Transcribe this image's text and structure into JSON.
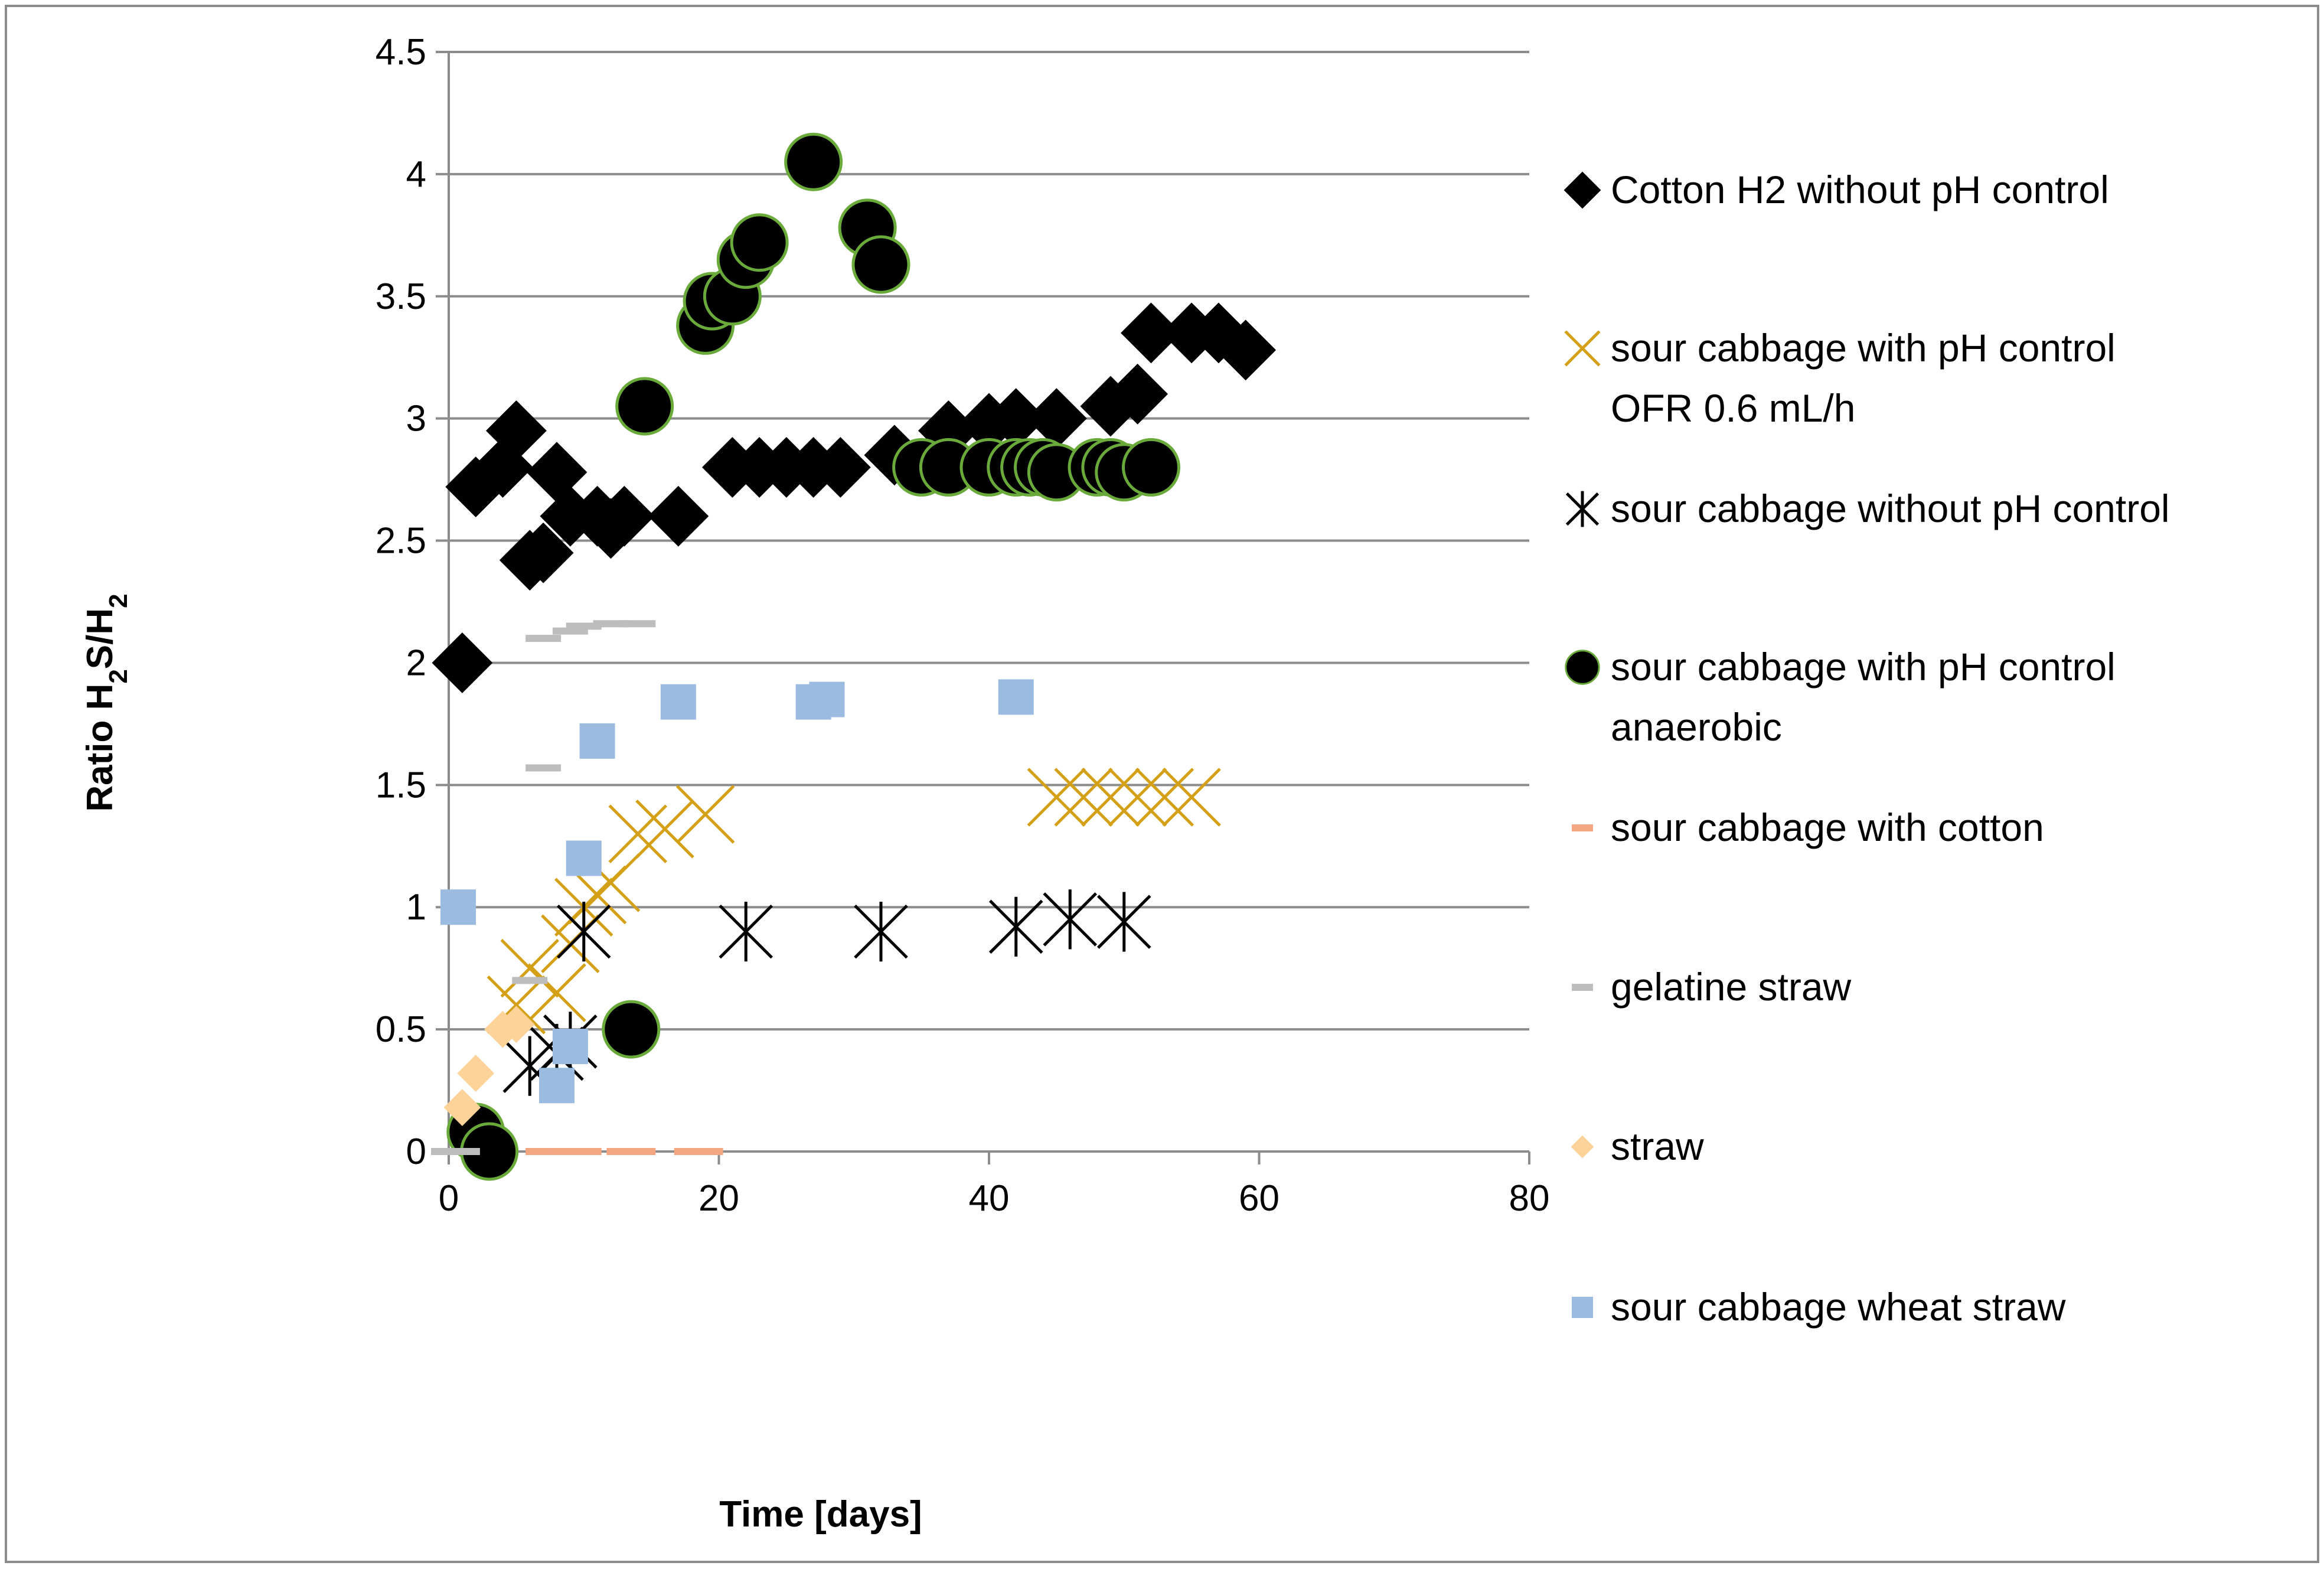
{
  "chart_data": {
    "type": "scatter",
    "title": "",
    "xlabel": "Time [days]",
    "ylabel": {
      "pre": "Ratio H",
      "sub1": "2",
      "mid": "S/H",
      "sub2": "2"
    },
    "xlim": [
      0,
      80
    ],
    "ylim": [
      0,
      4.5
    ],
    "xticks": [
      "0",
      "20",
      "40",
      "60",
      "80"
    ],
    "yticks": [
      "0",
      "0.5",
      "1",
      "1.5",
      "2",
      "2.5",
      "3",
      "3.5",
      "4",
      "4.5"
    ],
    "grid": "horizontal",
    "legend_position": "right",
    "series": [
      {
        "name": "Cotton H2 without pH control",
        "legend_lines": [
          "Cotton H2 without pH control"
        ],
        "marker": "diamond",
        "color": "#000000",
        "points": [
          [
            1,
            2.0
          ],
          [
            2,
            2.72
          ],
          [
            4,
            2.8
          ],
          [
            5,
            2.95
          ],
          [
            6,
            2.42
          ],
          [
            7,
            2.45
          ],
          [
            8,
            2.78
          ],
          [
            9,
            2.6
          ],
          [
            11,
            2.6
          ],
          [
            12,
            2.55
          ],
          [
            13,
            2.6
          ],
          [
            17,
            2.6
          ],
          [
            21,
            2.8
          ],
          [
            23,
            2.8
          ],
          [
            25,
            2.8
          ],
          [
            27,
            2.8
          ],
          [
            29,
            2.8
          ],
          [
            33,
            2.85
          ],
          [
            37,
            2.95
          ],
          [
            40,
            2.98
          ],
          [
            42,
            3.0
          ],
          [
            45,
            3.0
          ],
          [
            49,
            3.05
          ],
          [
            51,
            3.1
          ],
          [
            52,
            3.35
          ],
          [
            55,
            3.35
          ],
          [
            57,
            3.35
          ],
          [
            59,
            3.28
          ]
        ]
      },
      {
        "name": "sour cabbage with pH control OFR 0.6 mL/h",
        "legend_lines": [
          "sour cabbage with pH control",
          "OFR 0.6 mL/h"
        ],
        "marker": "x",
        "color": "#d4a017",
        "points": [
          [
            5,
            0.6
          ],
          [
            6,
            0.75
          ],
          [
            8,
            0.65
          ],
          [
            9,
            0.85
          ],
          [
            10,
            1.0
          ],
          [
            11,
            1.05
          ],
          [
            12,
            1.1
          ],
          [
            14,
            1.3
          ],
          [
            16,
            1.32
          ],
          [
            19,
            1.38
          ],
          [
            45,
            1.45
          ],
          [
            47,
            1.45
          ],
          [
            49,
            1.45
          ],
          [
            51,
            1.45
          ],
          [
            53,
            1.45
          ],
          [
            55,
            1.45
          ]
        ]
      },
      {
        "name": "sour cabbage without  pH control",
        "legend_lines": [
          "sour cabbage without  pH control"
        ],
        "marker": "star",
        "color": "#000000",
        "points": [
          [
            6,
            0.35
          ],
          [
            8,
            0.4
          ],
          [
            9,
            0.45
          ],
          [
            10,
            0.9
          ],
          [
            22,
            0.9
          ],
          [
            32,
            0.9
          ],
          [
            42,
            0.92
          ],
          [
            46,
            0.95
          ],
          [
            50,
            0.94
          ]
        ]
      },
      {
        "name": "sour cabbage with pH control anaerobic",
        "legend_lines": [
          "sour cabbage with pH control",
          "anaerobic"
        ],
        "marker": "circle",
        "color": "#000000",
        "stroke": "#6aaa3a",
        "points": [
          [
            2,
            0.08
          ],
          [
            3,
            0.0
          ],
          [
            13.5,
            0.5
          ],
          [
            14.5,
            3.05
          ],
          [
            19,
            3.38
          ],
          [
            19.5,
            3.48
          ],
          [
            21,
            3.5
          ],
          [
            22,
            3.65
          ],
          [
            23,
            3.72
          ],
          [
            27,
            4.05
          ],
          [
            31,
            3.78
          ],
          [
            32,
            3.63
          ],
          [
            35,
            2.8
          ],
          [
            37,
            2.8
          ],
          [
            40,
            2.8
          ],
          [
            42,
            2.8
          ],
          [
            43,
            2.8
          ],
          [
            44,
            2.8
          ],
          [
            45,
            2.78
          ],
          [
            48,
            2.8
          ],
          [
            49,
            2.8
          ],
          [
            50,
            2.78
          ],
          [
            52,
            2.8
          ]
        ]
      },
      {
        "name": "sour cabbage with cotton",
        "legend_lines": [
          "sour cabbage with cotton"
        ],
        "marker": "dash",
        "color": "#f4a582",
        "points": [
          [
            7,
            0.0
          ],
          [
            9,
            0.0
          ],
          [
            10,
            0.0
          ],
          [
            13,
            0.0
          ],
          [
            14,
            0.0
          ],
          [
            18,
            0.0
          ],
          [
            19,
            0.0
          ]
        ]
      },
      {
        "name": "gelatine straw",
        "legend_lines": [
          "gelatine straw"
        ],
        "marker": "dash",
        "color": "#bdbdbd",
        "points": [
          [
            0,
            0.0
          ],
          [
            1,
            0.0
          ],
          [
            6,
            0.7
          ],
          [
            7,
            1.57
          ],
          [
            7,
            2.1
          ],
          [
            9,
            2.13
          ],
          [
            10,
            2.15
          ],
          [
            12,
            2.16
          ],
          [
            14,
            2.16
          ]
        ]
      },
      {
        "name": "straw",
        "legend_lines": [
          "straw"
        ],
        "marker": "diamond",
        "color": "#fdd39a",
        "points": [
          [
            1,
            0.18
          ],
          [
            2,
            0.32
          ],
          [
            4,
            0.5
          ],
          [
            5,
            0.52
          ]
        ]
      },
      {
        "name": "sour cabbage wheat straw",
        "legend_lines": [
          "sour cabbage wheat straw"
        ],
        "marker": "square",
        "color": "#9bbbe0",
        "points": [
          [
            0.7,
            1.0
          ],
          [
            8,
            0.27
          ],
          [
            9,
            0.43
          ],
          [
            10,
            1.2
          ],
          [
            11,
            1.68
          ],
          [
            17,
            1.84
          ],
          [
            27,
            1.84
          ],
          [
            28,
            1.85
          ],
          [
            42,
            1.86
          ]
        ]
      }
    ]
  }
}
